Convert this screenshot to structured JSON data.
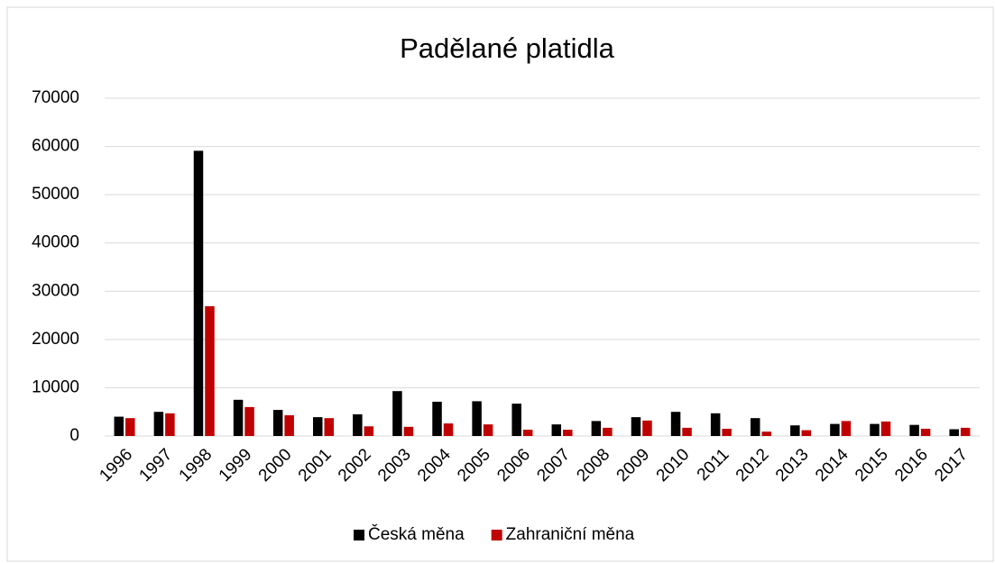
{
  "chart_data": {
    "type": "bar",
    "title": "Padělané platidla",
    "categories": [
      "1996",
      "1997",
      "1998",
      "1999",
      "2000",
      "2001",
      "2002",
      "2003",
      "2004",
      "2005",
      "2006",
      "2007",
      "2008",
      "2009",
      "2010",
      "2011",
      "2012",
      "2013",
      "2014",
      "2015",
      "2016",
      "2017"
    ],
    "series": [
      {
        "name": "Česká měna",
        "color": "#000000",
        "values": [
          4000,
          5000,
          59100,
          7500,
          5400,
          3900,
          4500,
          9300,
          7100,
          7200,
          6700,
          2400,
          3100,
          3900,
          5000,
          4700,
          3700,
          2200,
          2500,
          2500,
          2300,
          1400
        ]
      },
      {
        "name": "Zahraniční měna",
        "color": "#c00000",
        "values": [
          3700,
          4700,
          26900,
          6000,
          4300,
          3700,
          2000,
          1900,
          2600,
          2400,
          1300,
          1300,
          1700,
          3200,
          1700,
          1500,
          900,
          1200,
          3100,
          3000,
          1500,
          1700
        ]
      }
    ],
    "ylim": [
      0,
      70000
    ],
    "yticks": [
      0,
      10000,
      20000,
      30000,
      40000,
      50000,
      60000,
      70000
    ],
    "grid": true,
    "legend": "bottom"
  }
}
